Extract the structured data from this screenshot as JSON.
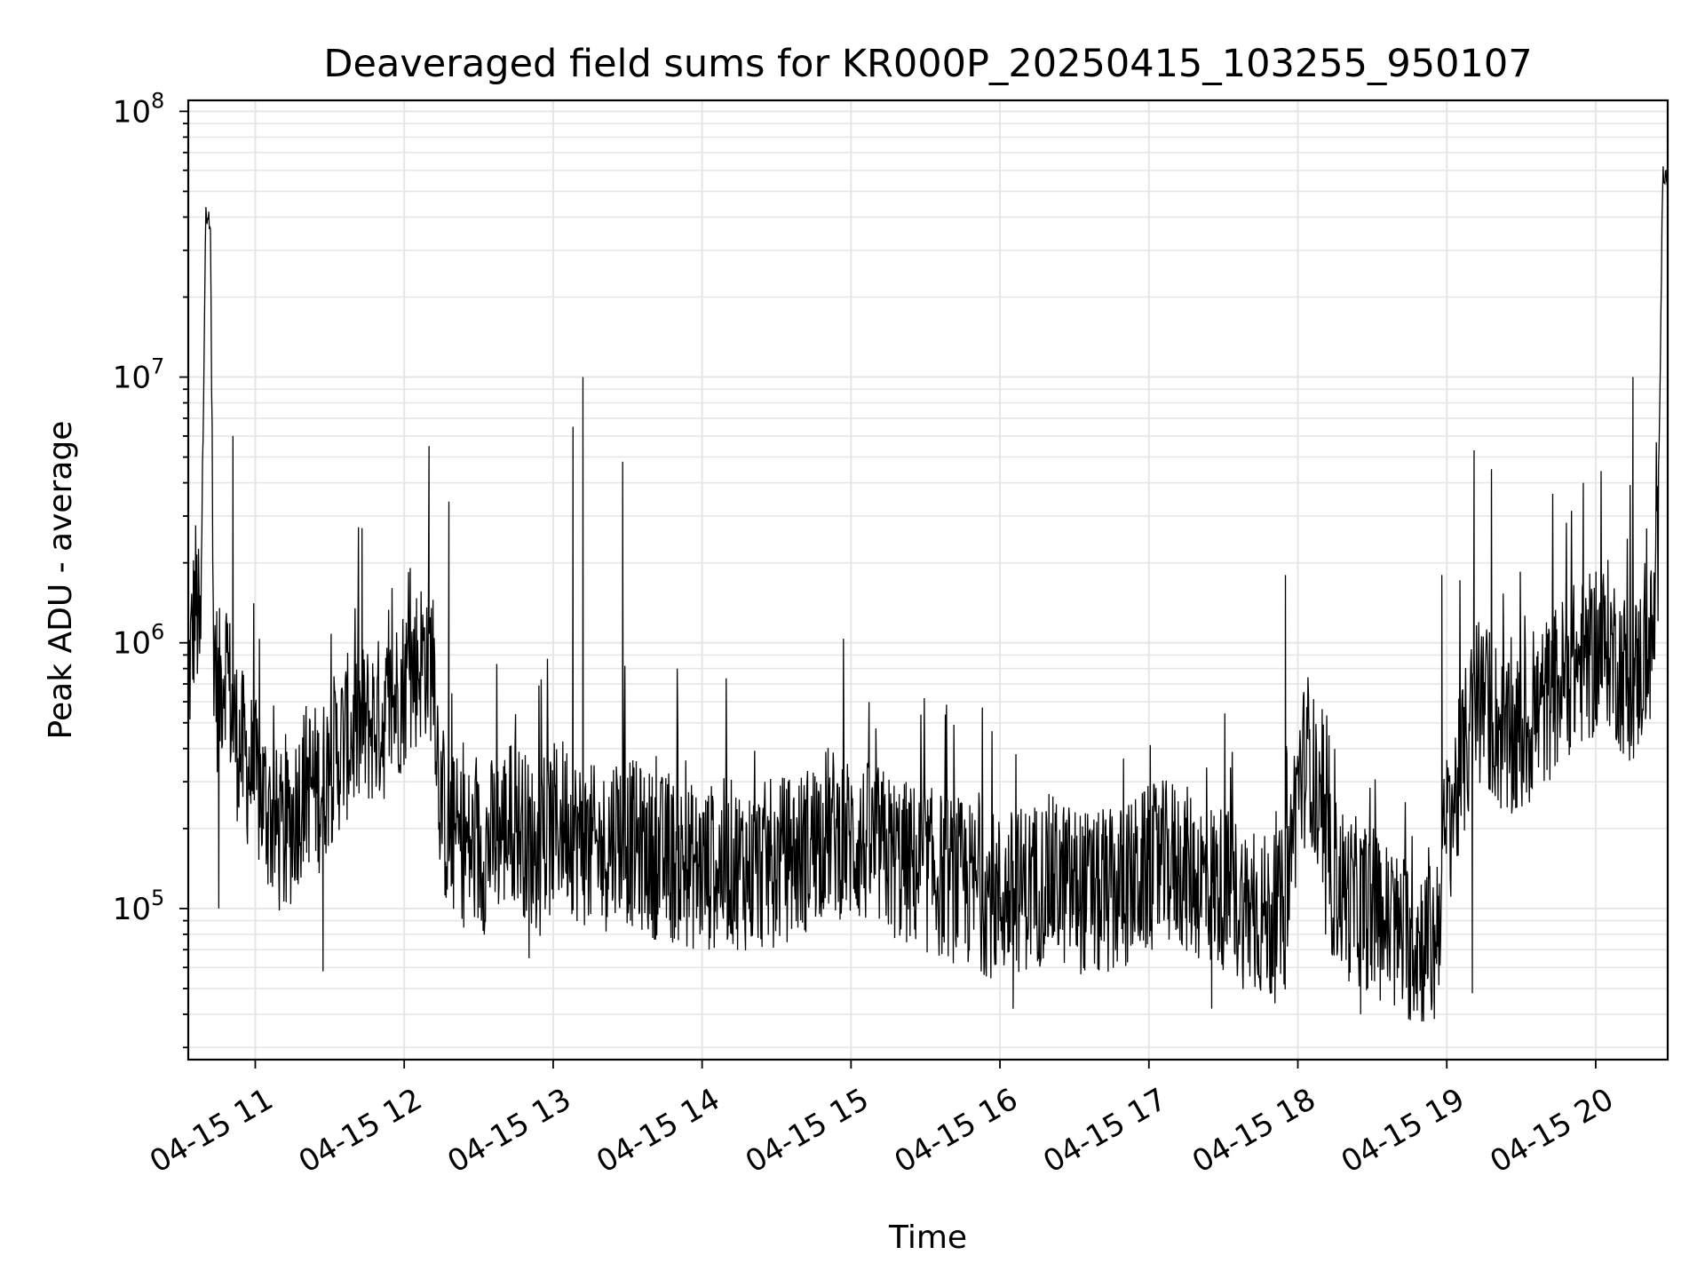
{
  "chart_data": {
    "type": "line",
    "title": "Deaveraged field sums for KR000P_20250415_103255_950107",
    "xlabel": "Time",
    "ylabel": "Peak ADU - average",
    "yscale": "log",
    "ylim": [
      27000,
      110000000
    ],
    "xlim": [
      "04-15 10:33",
      "04-15 20:29"
    ],
    "grid": true,
    "line_color": "#000000",
    "grid_color": "#e6e6e6",
    "x_ticks": [
      "04-15 11",
      "04-15 12",
      "04-15 13",
      "04-15 14",
      "04-15 15",
      "04-15 16",
      "04-15 17",
      "04-15 18",
      "04-15 19",
      "04-15 20"
    ],
    "y_ticks": [
      {
        "base": "10",
        "exp": "5"
      },
      {
        "base": "10",
        "exp": "6"
      },
      {
        "base": "10",
        "exp": "7"
      },
      {
        "base": "10",
        "exp": "8"
      }
    ],
    "series": [
      {
        "x": [
          "04-15 10:33",
          "04-15 10:36",
          "04-15 10:38",
          "04-15 10:40",
          "04-15 10:41",
          "04-15 10:42",
          "04-15 10:43",
          "04-15 10:45",
          "04-15 10:48",
          "04-15 10:51",
          "04-15 10:54",
          "04-15 11:00",
          "04-15 11:04",
          "04-15 11:08",
          "04-15 11:12",
          "04-15 11:17",
          "04-15 11:21",
          "04-15 11:26",
          "04-15 11:30",
          "04-15 11:34",
          "04-15 11:38",
          "04-15 11:43",
          "04-15 11:47",
          "04-15 11:52",
          "04-15 11:56",
          "04-15 12:00",
          "04-15 12:04",
          "04-15 12:08",
          "04-15 12:12",
          "04-15 12:14",
          "04-15 12:17",
          "04-15 12:22",
          "04-15 12:26",
          "04-15 12:31",
          "04-15 12:35",
          "04-15 12:40",
          "04-15 12:45",
          "04-15 12:50",
          "04-15 12:55",
          "04-15 13:00",
          "04-15 13:05",
          "04-15 13:10",
          "04-15 13:15",
          "04-15 13:20",
          "04-15 13:25",
          "04-15 13:30",
          "04-15 13:40",
          "04-15 13:50",
          "04-15 14:00",
          "04-15 14:10",
          "04-15 14:20",
          "04-15 14:30",
          "04-15 14:40",
          "04-15 14:50",
          "04-15 15:00",
          "04-15 15:10",
          "04-15 15:20",
          "04-15 15:30",
          "04-15 15:40",
          "04-15 15:50",
          "04-15 16:00",
          "04-15 16:10",
          "04-15 16:20",
          "04-15 16:30",
          "04-15 16:40",
          "04-15 16:50",
          "04-15 17:00",
          "04-15 17:10",
          "04-15 17:20",
          "04-15 17:30",
          "04-15 17:40",
          "04-15 17:50",
          "04-15 17:55",
          "04-15 18:00",
          "04-15 18:05",
          "04-15 18:10",
          "04-15 18:20",
          "04-15 18:30",
          "04-15 18:40",
          "04-15 18:50",
          "04-15 18:55",
          "04-15 19:00",
          "04-15 19:05",
          "04-15 19:10",
          "04-15 19:15",
          "04-15 19:20",
          "04-15 19:25",
          "04-15 19:30",
          "04-15 19:40",
          "04-15 19:50",
          "04-15 20:00",
          "04-15 20:05",
          "04-15 20:10",
          "04-15 20:15",
          "04-15 20:20",
          "04-15 20:23",
          "04-15 20:25",
          "04-15 20:27",
          "04-15 20:29"
        ],
        "y": [
          700000,
          1500000,
          900000,
          40000000,
          42000000,
          37000000,
          1200000,
          600000,
          900000,
          500000,
          400000,
          300000,
          250000,
          200000,
          180000,
          250000,
          300000,
          280000,
          350000,
          400000,
          450000,
          480000,
          500000,
          520000,
          600000,
          700000,
          800000,
          900000,
          850000,
          300000,
          200000,
          180000,
          170000,
          160000,
          180000,
          200000,
          220000,
          180000,
          160000,
          200000,
          220000,
          180000,
          170000,
          160000,
          200000,
          180000,
          160000,
          150000,
          140000,
          150000,
          140000,
          150000,
          160000,
          200000,
          180000,
          170000,
          150000,
          140000,
          130000,
          120000,
          110000,
          120000,
          130000,
          120000,
          110000,
          120000,
          140000,
          150000,
          130000,
          120000,
          100000,
          90000,
          100000,
          300000,
          400000,
          150000,
          110000,
          100000,
          80000,
          75000,
          70000,
          200000,
          300000,
          500000,
          600000,
          500000,
          400000,
          450000,
          600000,
          800000,
          900000,
          1000000,
          800000,
          700000,
          900000,
          1000000,
          2000000,
          60000000,
          55000000
        ],
        "spikes": [
          {
            "x": "04-15 10:51",
            "y": 6000000
          },
          {
            "x": "04-15 11:43",
            "y": 2700000
          },
          {
            "x": "04-15 12:10",
            "y": 5500000
          },
          {
            "x": "04-15 12:18",
            "y": 3400000
          },
          {
            "x": "04-15 13:08",
            "y": 6500000
          },
          {
            "x": "04-15 13:12",
            "y": 10000000
          },
          {
            "x": "04-15 13:28",
            "y": 4800000
          },
          {
            "x": "04-15 17:55",
            "y": 1800000
          },
          {
            "x": "04-15 18:58",
            "y": 1800000
          },
          {
            "x": "04-15 19:11",
            "y": 5300000
          },
          {
            "x": "04-15 19:18",
            "y": 4500000
          },
          {
            "x": "04-15 19:55",
            "y": 4000000
          },
          {
            "x": "04-15 20:15",
            "y": 10000000
          }
        ],
        "dips": [
          {
            "x": "04-15 10:45",
            "y": 100000
          },
          {
            "x": "04-15 11:27",
            "y": 58000
          },
          {
            "x": "04-15 12:50",
            "y": 65000
          },
          {
            "x": "04-15 16:05",
            "y": 42000
          },
          {
            "x": "04-15 17:25",
            "y": 42000
          },
          {
            "x": "04-15 18:25",
            "y": 40000
          },
          {
            "x": "04-15 18:45",
            "y": 38000
          },
          {
            "x": "04-15 19:10",
            "y": 48000
          }
        ]
      }
    ]
  }
}
